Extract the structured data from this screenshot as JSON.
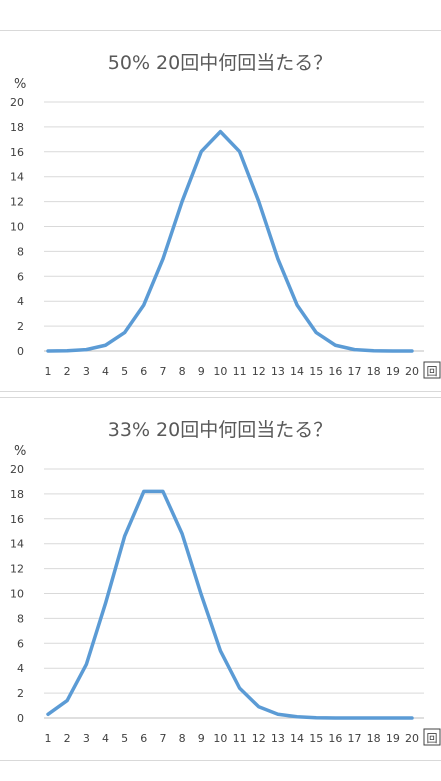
{
  "chart_data": [
    {
      "type": "line",
      "title": "50% 20回中何回当たる？",
      "ylabel": "%",
      "xlabel": "回",
      "categories": [
        "1",
        "2",
        "3",
        "4",
        "5",
        "6",
        "7",
        "8",
        "9",
        "10",
        "11",
        "12",
        "13",
        "14",
        "15",
        "16",
        "17",
        "18",
        "19",
        "20"
      ],
      "yticks": [
        "0",
        "2",
        "4",
        "6",
        "8",
        "10",
        "12",
        "14",
        "16",
        "18",
        "20"
      ],
      "ylim": [
        0,
        20
      ],
      "grid": true,
      "series": [
        {
          "values": [
            0.002,
            0.018,
            0.109,
            0.462,
            1.479,
            3.696,
            7.393,
            12.013,
            16.018,
            17.62,
            16.018,
            12.013,
            7.393,
            3.696,
            1.479,
            0.462,
            0.109,
            0.018,
            0.002,
            0.0001
          ],
          "color": "#5b9bd5"
        }
      ]
    },
    {
      "type": "line",
      "title": "33% 20回中何回当たる？",
      "ylabel": "%",
      "xlabel": "回",
      "categories": [
        "1",
        "2",
        "3",
        "4",
        "5",
        "6",
        "7",
        "8",
        "9",
        "10",
        "11",
        "12",
        "13",
        "14",
        "15",
        "16",
        "17",
        "18",
        "19",
        "20"
      ],
      "yticks": [
        "0",
        "2",
        "4",
        "6",
        "8",
        "10",
        "12",
        "14",
        "16",
        "18",
        "20"
      ],
      "ylim": [
        0,
        20
      ],
      "grid": true,
      "series": [
        {
          "values": [
            0.3,
            1.4,
            4.3,
            9.2,
            14.6,
            18.2,
            18.2,
            14.8,
            9.9,
            5.4,
            2.4,
            0.9,
            0.3,
            0.1,
            0.02,
            0.0,
            0.0,
            0.0,
            0.0,
            0.0
          ],
          "color": "#5b9bd5"
        }
      ]
    }
  ]
}
